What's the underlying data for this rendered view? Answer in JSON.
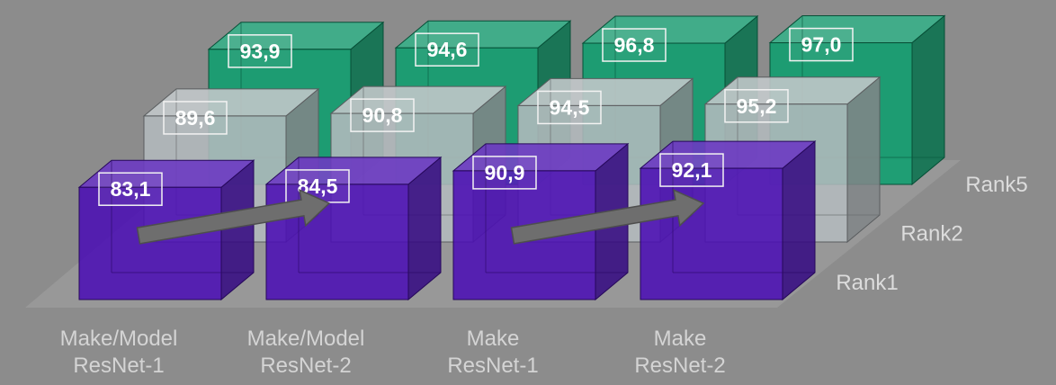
{
  "chart_data": {
    "type": "bar",
    "style": "3d-grouped",
    "categories": [
      [
        "Make/Model",
        "ResNet-1"
      ],
      [
        "Make/Model",
        "ResNet-2"
      ],
      [
        "Make",
        "ResNet-1"
      ],
      [
        "Make",
        "ResNet-2"
      ]
    ],
    "series": [
      {
        "name": "Rank1",
        "values": [
          83.1,
          84.5,
          90.9,
          92.1
        ],
        "labels": [
          "83,1",
          "84,5",
          "90,9",
          "92,1"
        ],
        "color": "#4b0fb4"
      },
      {
        "name": "Rank2",
        "values": [
          89.6,
          90.8,
          94.5,
          95.2
        ],
        "labels": [
          "89,6",
          "90,8",
          "94,5",
          "95,2"
        ],
        "color": "#b3b9bd"
      },
      {
        "name": "Rank5",
        "values": [
          93.9,
          94.6,
          96.8,
          97.0
        ],
        "labels": [
          "93,9",
          "94,6",
          "96,8",
          "97,0"
        ],
        "color": "#0e9e6e"
      }
    ],
    "arrows": [
      {
        "from_category": 0,
        "to_category": 1
      },
      {
        "from_category": 2,
        "to_category": 3
      }
    ],
    "legend_position": "right-depth-axis",
    "grid": false,
    "background_color": "#8c8c8c",
    "floor_color": "#9a9a9a"
  }
}
